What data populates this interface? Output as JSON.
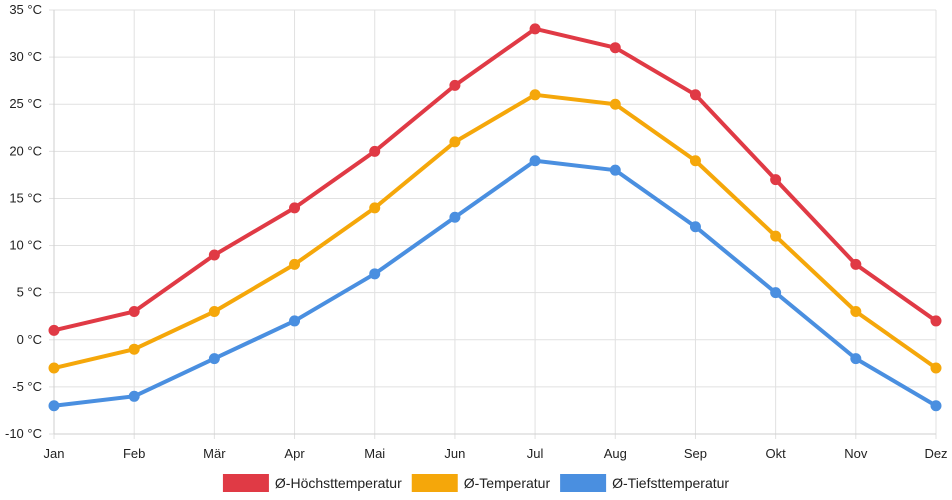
{
  "chart_data": {
    "type": "line",
    "title": "",
    "xlabel": "",
    "ylabel": "",
    "categories": [
      "Jan",
      "Feb",
      "Mär",
      "Apr",
      "Mai",
      "Jun",
      "Jul",
      "Aug",
      "Sep",
      "Okt",
      "Nov",
      "Dez"
    ],
    "y_unit": "°C",
    "ylim": [
      -10,
      35
    ],
    "yticks": [
      -10,
      -5,
      0,
      5,
      10,
      15,
      20,
      25,
      30,
      35
    ],
    "grid": true,
    "legend_position": "bottom",
    "series": [
      {
        "name": "Ø-Höchsttemperatur",
        "color": "#e03a45",
        "values": [
          1,
          3,
          9,
          14,
          20,
          27,
          33,
          31,
          26,
          17,
          8,
          2
        ]
      },
      {
        "name": "Ø-Temperatur",
        "color": "#f5a70a",
        "values": [
          -3,
          -1,
          3,
          8,
          14,
          21,
          26,
          25,
          19,
          11,
          3,
          -3
        ]
      },
      {
        "name": "Ø-Tiefsttemperatur",
        "color": "#4a8fe0",
        "values": [
          -7,
          -6,
          -2,
          2,
          7,
          13,
          19,
          18,
          12,
          5,
          -2,
          -7
        ]
      }
    ]
  }
}
